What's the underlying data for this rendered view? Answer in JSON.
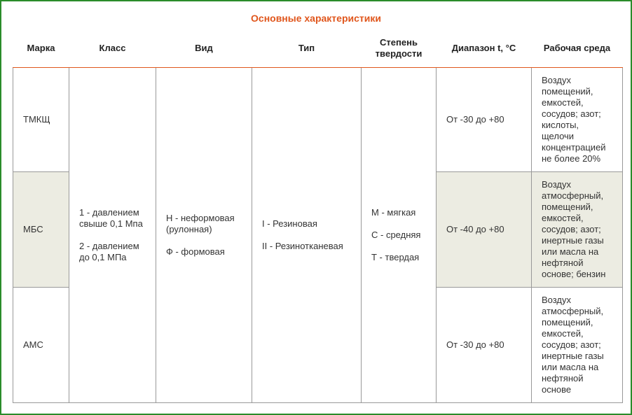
{
  "title": "Основные характеристики",
  "columns": [
    "Марка",
    "Класс",
    "Вид",
    "Тип",
    "Степень твердости",
    "Диапазон t, °C",
    "Рабочая среда"
  ],
  "rows": [
    {
      "brand": "ТМКЩ",
      "range": "От -30 до +80",
      "medium": "Воздух помещений, емкостей, сосудов; азот; кислоты, щелочи концентрацией не более 20%"
    },
    {
      "brand": "МБС",
      "range": "От -40 до +80",
      "medium": "Воздух атмосферный, помещений, емкостей, сосудов; азот; инертные газы или масла на нефтяной основе; бензин"
    },
    {
      "brand": "АМС",
      "range": "От -30 до +80",
      "medium": "Воздух атмосферный, помещений, емкостей, сосудов; азот; инертные газы или масла на нефтяной основе"
    }
  ],
  "shared": {
    "class": [
      "1 - давлением свыше 0,1 Мпа",
      "2 - давлением до 0,1 МПа"
    ],
    "kind": [
      "Н - неформовая (рулонная)",
      "Ф - формовая"
    ],
    "type": [
      "I - Резиновая",
      "II - Резинотканевая"
    ],
    "hardness": [
      "М - мягкая",
      "С - средняя",
      "Т - твердая"
    ]
  },
  "colors": {
    "accent": "#e0561c",
    "frame": "#2a8c2a",
    "shade": "#ecece2"
  }
}
